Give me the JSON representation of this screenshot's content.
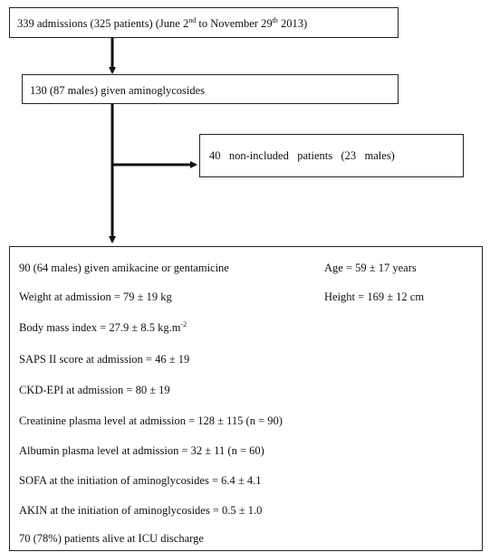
{
  "flowchart": {
    "box1": {
      "pre": "339 admissions (325 patients) (June 2",
      "sup1": "nd",
      "mid": " to November 29",
      "sup2": "th",
      "post": " 2013)"
    },
    "box2": "130 (87 males) given aminoglycosides",
    "box3": "40   non-included   patients   (23   males)",
    "box4": {
      "line1_left": "90 (64 males) given amikacine or gentamicine",
      "line1_right": "Age = 59 ± 17 years",
      "line2_left": "Weight at admission = 79 ± 19 kg",
      "line2_right": "Height = 169 ± 12 cm",
      "bmi_pre": "Body mass index = 27.9 ± 8.5 kg.m",
      "bmi_sup": "-2",
      "saps": "SAPS II score at admission = 46 ± 19",
      "ckd": "CKD-EPI at admission = 80 ± 19",
      "creatinine": "Creatinine plasma level at admission = 128 ± 115  (n = 90)",
      "albumin": "Albumin plasma level at admission = 32 ± 11  (n = 60)",
      "sofa": "SOFA at the initiation of aminoglycosides = 6.4 ± 4.1",
      "akin": "AKIN at the initiation of aminoglycosides = 0.5 ± 1.0",
      "alive": "70 (78%) patients alive at ICU discharge"
    }
  }
}
